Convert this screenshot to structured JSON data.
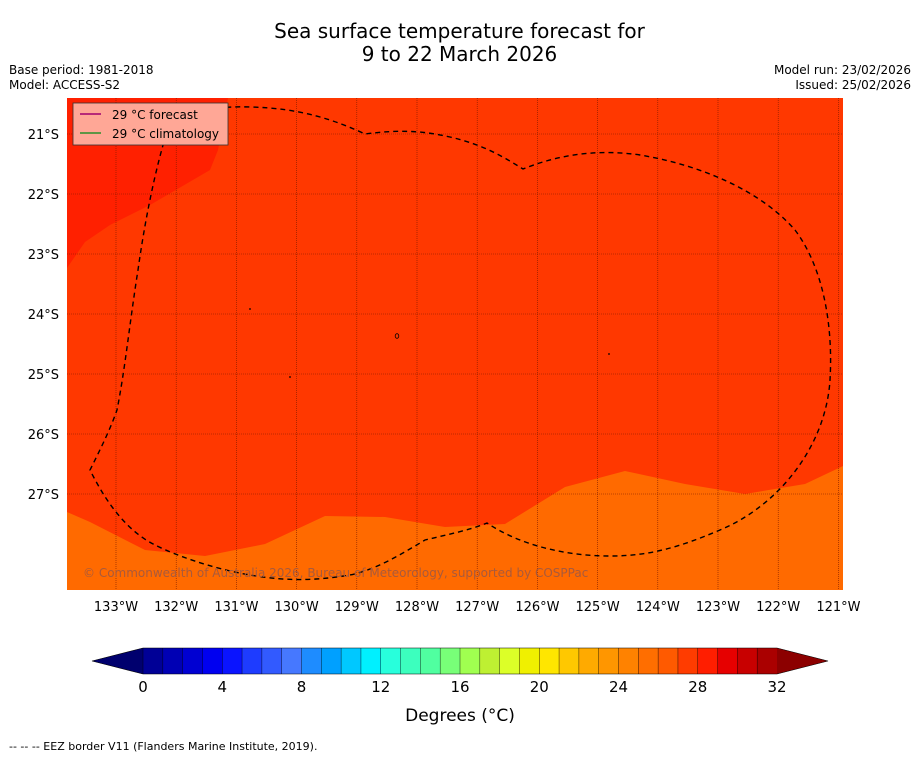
{
  "title_line1": "Sea surface temperature forecast for",
  "title_line2": "9 to 22 March 2026",
  "meta_left": [
    "Base period: 1981-2018",
    "Model: ACCESS-S2"
  ],
  "meta_right": [
    "Model run: 23/02/2026",
    "Issued: 25/02/2026"
  ],
  "legend": [
    {
      "label": "29 °C  forecast",
      "color": "#a0006e"
    },
    {
      "label": "29 °C  climatology",
      "color": "#2a8f2a"
    }
  ],
  "lat_labels": [
    "21°S",
    "22°S",
    "23°S",
    "24°S",
    "25°S",
    "26°S",
    "27°S"
  ],
  "lon_labels": [
    "133°W",
    "132°W",
    "131°W",
    "130°W",
    "129°W",
    "128°W",
    "127°W",
    "126°W",
    "125°W",
    "124°W",
    "123°W",
    "122°W",
    "121°W"
  ],
  "copyright": "© Commonwealth of Australia 2026, Bureau of Meteorology, supported by COSPPac",
  "colorbar": {
    "ticks": [
      "0",
      "4",
      "8",
      "12",
      "16",
      "20",
      "24",
      "28",
      "32"
    ],
    "title": "Degrees (°C)",
    "colors": [
      "#000096",
      "#0000b4",
      "#0000d2",
      "#0000f0",
      "#0a14ff",
      "#1e3cff",
      "#325aff",
      "#4678ff",
      "#1e8cff",
      "#00a0ff",
      "#00c8ff",
      "#00f0ff",
      "#28ffdc",
      "#3cffbe",
      "#50ffa0",
      "#78ff78",
      "#a0ff50",
      "#bef032",
      "#dcff28",
      "#f0f000",
      "#ffe600",
      "#ffc800",
      "#ffaa00",
      "#ff9600",
      "#ff8200",
      "#ff6e00",
      "#ff5a00",
      "#ff3c00",
      "#ff1e00",
      "#e60000",
      "#c80000",
      "#aa0000"
    ],
    "low_color": "#00006e",
    "high_color": "#8c0000"
  },
  "footer": "--  --  -- EEZ border V11 (Flanders Marine Institute, 2019).",
  "colors": {
    "sst_main": "#ff3800",
    "sst_warm": "#ff2000",
    "sst_cool": "#ff6a00",
    "legend_bg": "#ffa796",
    "copyright_text": "#a85a3c"
  }
}
